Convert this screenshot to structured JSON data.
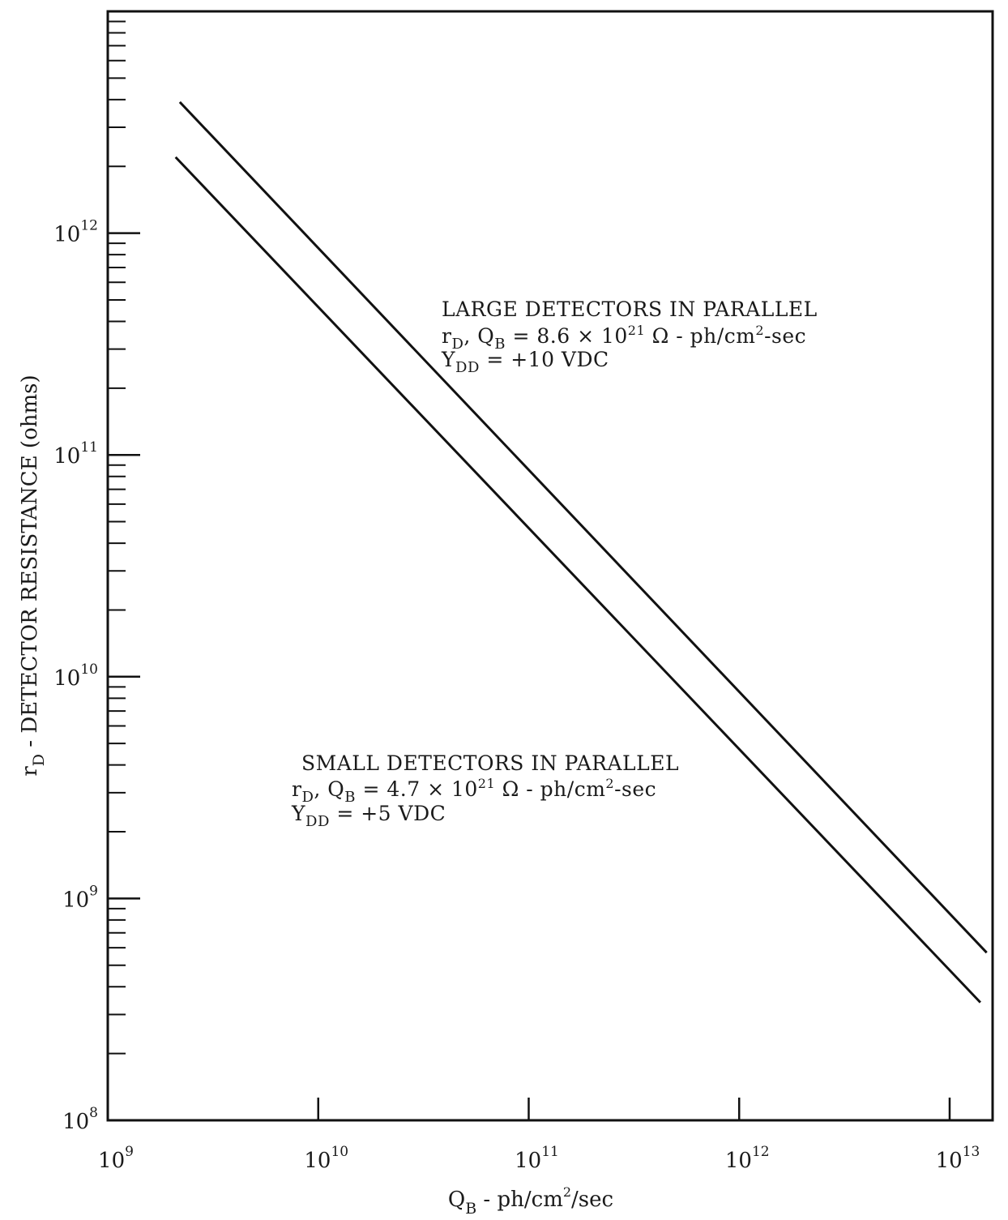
{
  "chart_data": {
    "type": "line",
    "x_scale": "log",
    "y_scale": "log",
    "xlim": [
      1000000000.0,
      16000000000000.0
    ],
    "ylim": [
      100000000.0,
      10000000000000.0
    ],
    "grid": false,
    "legend": "none",
    "x_ticks": [
      {
        "base": "10",
        "exp": "9",
        "value": 1000000000.0
      },
      {
        "base": "10",
        "exp": "10",
        "value": 10000000000.0
      },
      {
        "base": "10",
        "exp": "11",
        "value": 100000000000.0
      },
      {
        "base": "10",
        "exp": "12",
        "value": 1000000000000.0
      },
      {
        "base": "10",
        "exp": "13",
        "value": 10000000000000.0
      }
    ],
    "y_ticks": [
      {
        "base": "10",
        "exp": "8",
        "value": 100000000.0
      },
      {
        "base": "10",
        "exp": "9",
        "value": 1000000000.0
      },
      {
        "base": "10",
        "exp": "10",
        "value": 10000000000.0
      },
      {
        "base": "10",
        "exp": "11",
        "value": 100000000000.0
      },
      {
        "base": "10",
        "exp": "12",
        "value": 1000000000000.0
      }
    ],
    "xlabel": {
      "main": "Q",
      "sub": "B",
      "rest1": " - ph/cm",
      "sup": "2",
      "rest2": "/sec"
    },
    "ylabel": {
      "main": "r",
      "sub": "D",
      "rest": " - DETECTOR RESISTANCE (ohms)"
    },
    "series": [
      {
        "x": [
          2200000000.0,
          15000000000000.0
        ],
        "y": [
          3900000000000.0,
          570000000.0
        ],
        "color": "#111111"
      },
      {
        "x": [
          2100000000.0,
          14000000000000.0
        ],
        "y": [
          2200000000000.0,
          340000000.0
        ],
        "color": "#111111"
      }
    ],
    "annotations": [
      {
        "title": "LARGE DETECTORS IN PARALLEL",
        "line2": {
          "r": "r",
          "r_sub": "D",
          "sep": ", ",
          "q": "Q",
          "q_sub": "B",
          "eq": " = 8.6 × 10",
          "exp": "21",
          "unit1": " Ω - ph/cm",
          "unit_sup": "2",
          "unit2": "-sec"
        },
        "line3": {
          "v": "Y",
          "v_sub": "DD",
          "val": " = +10 VDC"
        }
      },
      {
        "title": "SMALL DETECTORS IN PARALLEL",
        "line2": {
          "r": "r",
          "r_sub": "D",
          "sep": ", ",
          "q": "Q",
          "q_sub": "B",
          "eq": " = 4.7 × 10",
          "exp": "21",
          "unit1": " Ω - ph/cm",
          "unit_sup": "2",
          "unit2": "-sec"
        },
        "line3": {
          "v": "Y",
          "v_sub": "DD",
          "val": " = +5 VDC"
        }
      }
    ]
  }
}
